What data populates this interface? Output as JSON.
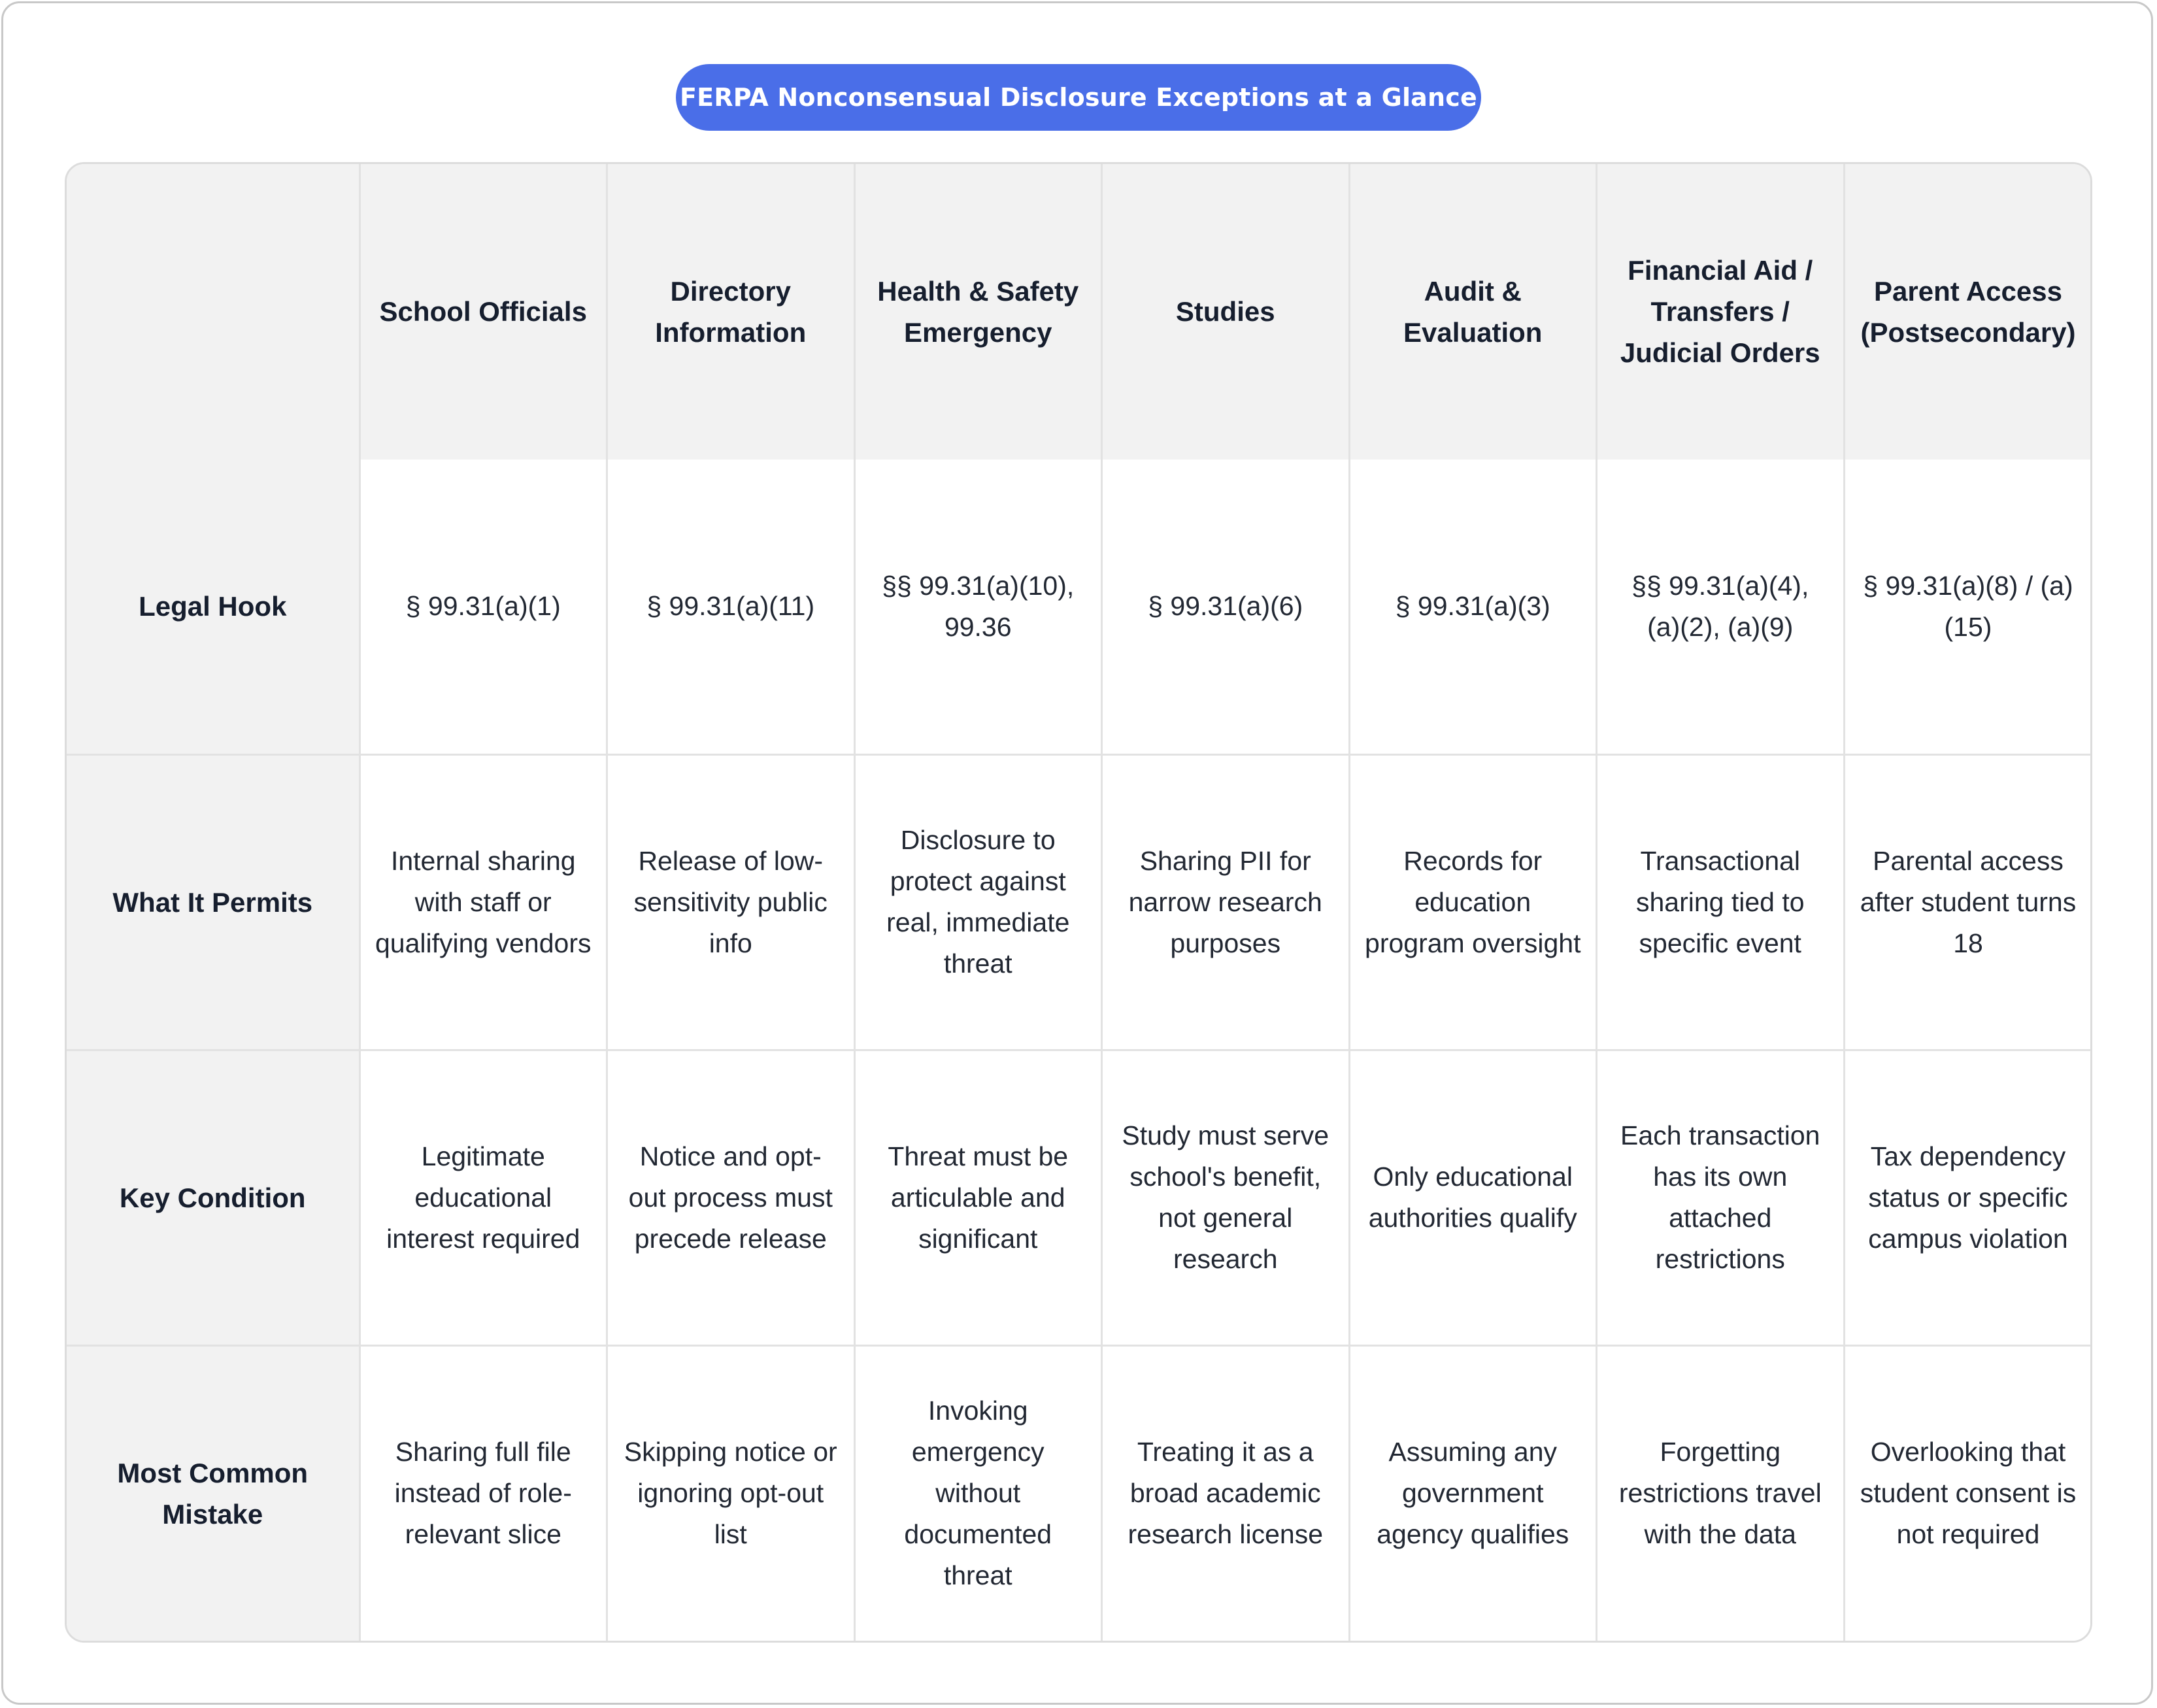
{
  "title": "FERPA Nonconsensual Disclosure Exceptions at a Glance",
  "columns": [
    "",
    "School Officials",
    "Directory Information",
    "Health & Safety Emergency",
    "Studies",
    "Audit & Evaluation",
    "Financial Aid / Transfers / Judicial Orders",
    "Parent Access (Postsecondary)"
  ],
  "rows": [
    {
      "label": "Legal Hook",
      "cells": [
        "§ 99.31(a)(1)",
        "§ 99.31(a)(11)",
        "§§ 99.31(a)(10), 99.36",
        "§ 99.31(a)(6)",
        "§ 99.31(a)(3)",
        "§§ 99.31(a)(4), (a)(2), (a)(9)",
        "§ 99.31(a)(8) / (a)(15)"
      ]
    },
    {
      "label": "What It Permits",
      "cells": [
        "Internal sharing with staff or qualifying vendors",
        "Release of low-sensitivity public info",
        "Disclosure to protect against real, immediate threat",
        "Sharing PII for narrow research purposes",
        "Records for education program oversight",
        "Transactional sharing tied to specific event",
        "Parental access after student turns 18"
      ]
    },
    {
      "label": "Key Condition",
      "cells": [
        "Legitimate educational interest required",
        "Notice and opt-out process must precede release",
        "Threat must be articulable and significant",
        "Study must serve school's benefit, not general research",
        "Only educational authorities qualify",
        "Each transaction has its own attached restrictions",
        "Tax dependency status or specific campus violation"
      ]
    },
    {
      "label": "Most Common Mistake",
      "cells": [
        "Sharing full file instead of role-relevant slice",
        "Skipping notice or ignoring opt-out list",
        "Invoking emergency without documented threat",
        "Treating it as a broad academic research license",
        "Assuming any government agency qualifies",
        "Forgetting restrictions travel with the data",
        "Overlooking that student consent is not required"
      ]
    }
  ],
  "colors": {
    "title_bg": "#4a6ee8",
    "header_bg": "#f2f2f2",
    "border": "#e2e2e2"
  }
}
